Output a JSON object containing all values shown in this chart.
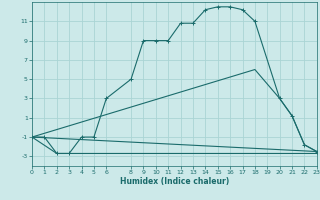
{
  "xlabel": "Humidex (Indice chaleur)",
  "bg_color": "#cce9e9",
  "grid_color": "#aad4d4",
  "line_color": "#1a6b6b",
  "xlim": [
    0,
    23
  ],
  "ylim": [
    -4,
    13
  ],
  "xticks": [
    0,
    1,
    2,
    3,
    4,
    5,
    6,
    8,
    9,
    10,
    11,
    12,
    13,
    14,
    15,
    16,
    17,
    18,
    19,
    20,
    21,
    22,
    23
  ],
  "yticks": [
    -3,
    -1,
    1,
    3,
    5,
    7,
    9,
    11
  ],
  "curve1_x": [
    0,
    1,
    2,
    3,
    4,
    5,
    6,
    8,
    9,
    10,
    11,
    12,
    13,
    14,
    15,
    16,
    17,
    18,
    20,
    21,
    22,
    23
  ],
  "curve1_y": [
    -1,
    -1,
    -2.7,
    -2.7,
    -1,
    -1,
    3,
    5,
    9,
    9,
    9,
    10.8,
    10.8,
    12.2,
    12.5,
    12.5,
    12.2,
    11,
    3,
    1.2,
    -1.8,
    -2.5
  ],
  "curve2_x": [
    0,
    2,
    3,
    4,
    5,
    6,
    7,
    8,
    9,
    10,
    11,
    12,
    13,
    14,
    15,
    16,
    17,
    18,
    19,
    20,
    21,
    22,
    23
  ],
  "curve2_y": [
    -1,
    -2.7,
    -2.7,
    -2.7,
    -2.7,
    -2.7,
    -2.7,
    -2.7,
    -2.7,
    -2.7,
    -2.7,
    -2.7,
    -2.7,
    -2.7,
    -2.7,
    -2.7,
    -2.7,
    -2.7,
    -2.7,
    -2.7,
    -2.7,
    -2.7,
    -2.7
  ],
  "curve3_x": [
    0,
    23
  ],
  "curve3_y": [
    -1,
    -2.5
  ],
  "curve4_x": [
    0,
    18,
    20,
    21,
    22,
    23
  ],
  "curve4_y": [
    -1,
    6,
    3,
    1.2,
    -1.8,
    -2.5
  ]
}
